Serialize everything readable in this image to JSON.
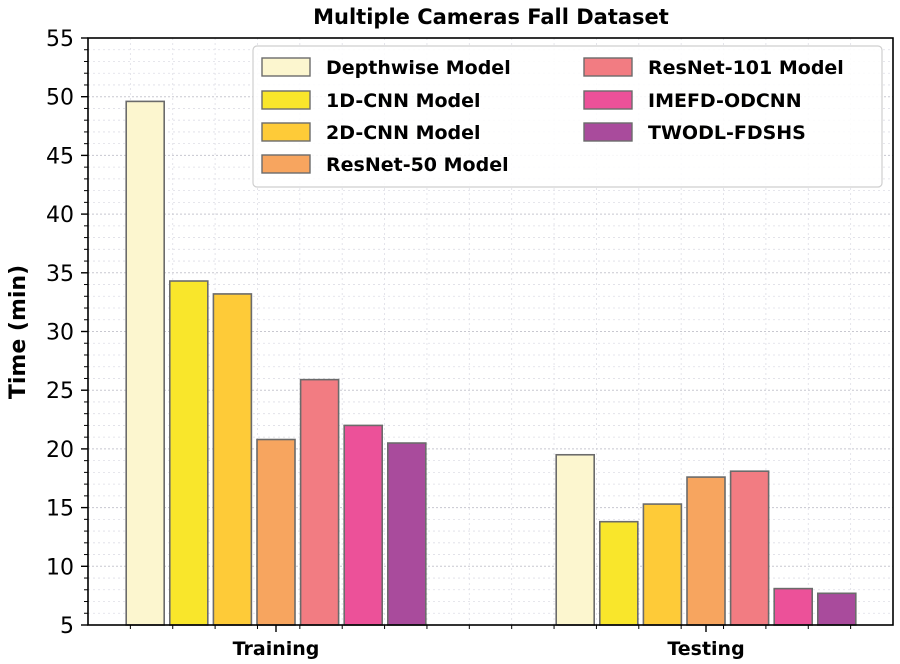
{
  "chart_data": {
    "type": "bar",
    "title": "Multiple Cameras Fall Dataset",
    "xlabel": "",
    "ylabel": "Time (min)",
    "ylim": [
      5,
      55
    ],
    "yticks": [
      5,
      10,
      15,
      20,
      25,
      30,
      35,
      40,
      45,
      50,
      55
    ],
    "categories": [
      "Training",
      "Testing"
    ],
    "grid": true,
    "legend_placement": "top-right",
    "series": [
      {
        "name": "Depthwise Model",
        "color": "#fcf6cf",
        "values": [
          49.6,
          19.5
        ]
      },
      {
        "name": "1D-CNN Model",
        "color": "#f9e62b",
        "values": [
          34.3,
          13.8
        ]
      },
      {
        "name": "2D-CNN Model",
        "color": "#fecb38",
        "values": [
          33.2,
          15.3
        ]
      },
      {
        "name": "ResNet-50 Model",
        "color": "#f7a55f",
        "values": [
          20.8,
          17.6
        ]
      },
      {
        "name": "ResNet-101 Model",
        "color": "#f27c82",
        "values": [
          25.9,
          18.1
        ]
      },
      {
        "name": "IMEFD-ODCNN",
        "color": "#ec5199",
        "values": [
          22.0,
          8.1
        ]
      },
      {
        "name": "TWODL-FDSHS",
        "color": "#a94b9c",
        "values": [
          20.5,
          7.7
        ]
      }
    ]
  }
}
